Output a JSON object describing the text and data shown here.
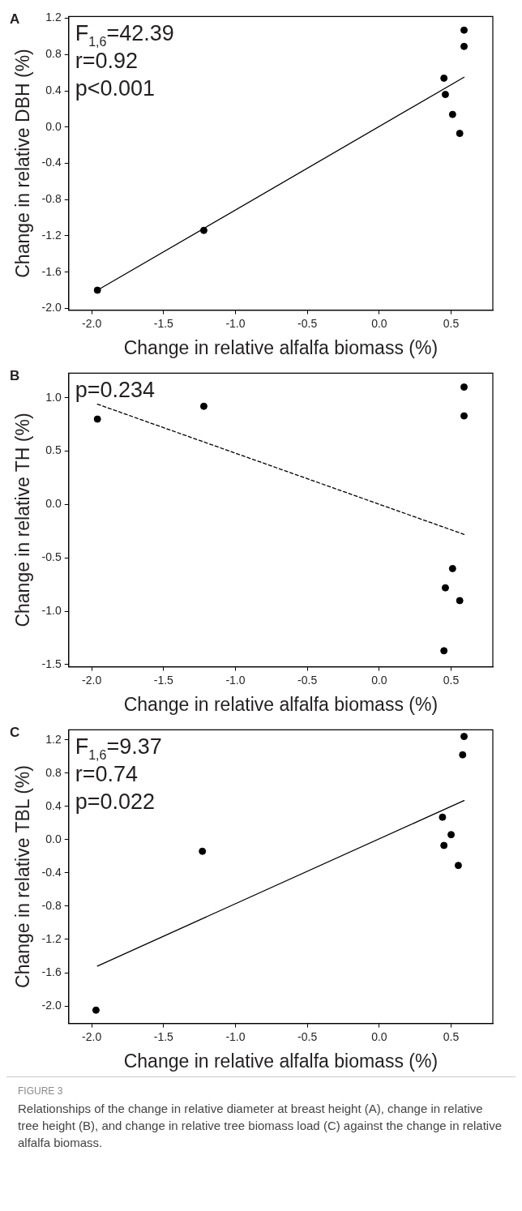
{
  "chart_data": [
    {
      "type": "scatter",
      "title": "A",
      "xlabel": "Change in relative alfalfa biomass (%)",
      "ylabel": "Change in relative DBH (%)",
      "xlim": [
        -2.16,
        0.79
      ],
      "xticks": [
        {
          "value": -2,
          "label": "-2.0"
        },
        -1.5,
        {
          "value": -1,
          "label": "-1.0"
        },
        -0.5,
        {
          "value": 0,
          "label": "0.0"
        },
        0.5
      ],
      "ylim": [
        -2.02,
        1.22
      ],
      "yticks": [
        {
          "value": -2,
          "label": "-2.0"
        },
        -1.6,
        -1.2,
        -0.8,
        -0.4,
        {
          "value": 0,
          "label": "0.0"
        },
        0.4,
        0.8,
        1.2
      ],
      "grid": false,
      "legend": false,
      "annotations": [
        "F$_{1,6}$=42.39",
        "r=0.92",
        "p<0.001"
      ],
      "series": [
        {
          "color": "#000000",
          "marker": "circle",
          "x": [
            -1.96,
            -1.22,
            0.45,
            0.46,
            0.51,
            0.56,
            0.59,
            0.59
          ],
          "values": [
            -1.8,
            -1.14,
            0.54,
            0.36,
            0.14,
            -0.07,
            0.89,
            1.07
          ]
        },
        {
          "type": "line",
          "color": "#000000",
          "line_style": "solid",
          "x": [
            -1.96,
            0.59
          ],
          "values": [
            -1.8,
            0.55
          ]
        }
      ]
    },
    {
      "type": "scatter",
      "title": "B",
      "xlabel": "Change in relative alfalfa biomass (%)",
      "ylabel": "Change in relative TH (%)",
      "xlim": [
        -2.16,
        0.79
      ],
      "xticks": [
        {
          "value": -2,
          "label": "-2.0"
        },
        -1.5,
        {
          "value": -1,
          "label": "-1.0"
        },
        -0.5,
        {
          "value": 0,
          "label": "0.0"
        },
        0.5
      ],
      "ylim": [
        -1.52,
        1.23
      ],
      "yticks": [
        {
          "value": -1.5,
          "label": "-1.5"
        },
        {
          "value": -1,
          "label": "-1.0"
        },
        -0.5,
        {
          "value": 0,
          "label": "0.0"
        },
        0.5,
        {
          "value": 1,
          "label": "1.0"
        }
      ],
      "grid": false,
      "legend": false,
      "annotations": [
        "p=0.234"
      ],
      "series": [
        {
          "color": "#000000",
          "marker": "circle",
          "x": [
            -1.96,
            -1.22,
            0.59,
            0.59,
            0.51,
            0.46,
            0.56,
            0.45
          ],
          "values": [
            0.8,
            0.92,
            1.1,
            0.83,
            -0.6,
            -0.78,
            -0.9,
            -1.37
          ]
        },
        {
          "type": "line",
          "color": "#000000",
          "line_style": "dashed",
          "x": [
            -1.96,
            0.59
          ],
          "values": [
            0.94,
            -0.28
          ]
        }
      ]
    },
    {
      "type": "scatter",
      "title": "C",
      "xlabel": "Change in relative alfalfa biomass (%)",
      "ylabel": "Change in relative TBL (%)",
      "xlim": [
        -2.16,
        0.79
      ],
      "xticks": [
        {
          "value": -2,
          "label": "-2.0"
        },
        -1.5,
        {
          "value": -1,
          "label": "-1.0"
        },
        -0.5,
        {
          "value": 0,
          "label": "0.0"
        },
        0.5
      ],
      "ylim": [
        -2.21,
        1.32
      ],
      "yticks": [
        {
          "value": -2,
          "label": "-2.0"
        },
        -1.6,
        -1.2,
        -0.8,
        -0.4,
        {
          "value": 0,
          "label": "0.0"
        },
        0.4,
        0.8,
        1.2
      ],
      "grid": false,
      "legend": false,
      "annotations": [
        "F$_{1,6}$=9.37",
        "r=0.74",
        "p=0.022"
      ],
      "series": [
        {
          "color": "#000000",
          "marker": "circle",
          "x": [
            -1.97,
            -1.23,
            0.59,
            0.58,
            0.44,
            0.5,
            0.45,
            0.55
          ],
          "values": [
            -2.05,
            -0.14,
            1.24,
            1.02,
            0.27,
            0.06,
            -0.07,
            -0.31
          ]
        },
        {
          "type": "line",
          "color": "#000000",
          "line_style": "solid",
          "x": [
            -1.96,
            0.59
          ],
          "values": [
            -1.52,
            0.47
          ]
        }
      ]
    },
    {
      "type": "other",
      "title": "FIGURE 3",
      "subtitle": "Relationships of the change in relative diameter at breast height (A), change in relative tree height (B), and change in relative tree biomass load (C) against the change in relative alfalfa biomass."
    }
  ]
}
